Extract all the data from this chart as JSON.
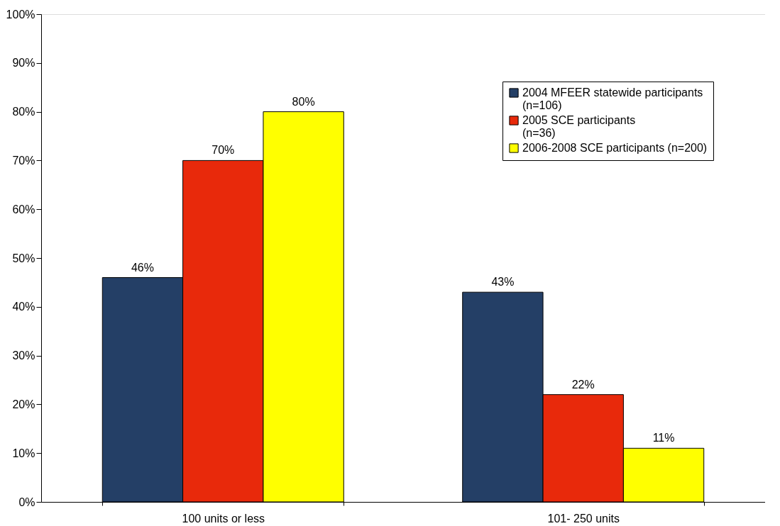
{
  "chart_data": {
    "type": "bar",
    "categories": [
      "100 units or less",
      "101- 250 units"
    ],
    "series": [
      {
        "name": "2004 MFEER statewide participants\n(n=106)",
        "color": "#243f66",
        "values": [
          46,
          43
        ]
      },
      {
        "name": "2005 SCE participants\n  (n=36)",
        "color": "#e8290b",
        "values": [
          70,
          22
        ]
      },
      {
        "name": "2006-2008 SCE participants (n=200)",
        "color": "#ffff00",
        "values": [
          80,
          11
        ]
      }
    ],
    "value_labels": [
      [
        "46%",
        "43%"
      ],
      [
        "70%",
        "22%"
      ],
      [
        "80%",
        "11%"
      ]
    ],
    "ylim": [
      0,
      100
    ],
    "yticks": [
      {
        "value": 0,
        "label": "0%"
      },
      {
        "value": 10,
        "label": "10%"
      },
      {
        "value": 20,
        "label": "20%"
      },
      {
        "value": 30,
        "label": "30%"
      },
      {
        "value": 40,
        "label": "40%"
      },
      {
        "value": 50,
        "label": "50%"
      },
      {
        "value": 60,
        "label": "60%"
      },
      {
        "value": 70,
        "label": "70%"
      },
      {
        "value": 80,
        "label": "80%"
      },
      {
        "value": 90,
        "label": "90%"
      },
      {
        "value": 100,
        "label": "100%"
      }
    ],
    "grid": false,
    "legend": "top right"
  }
}
